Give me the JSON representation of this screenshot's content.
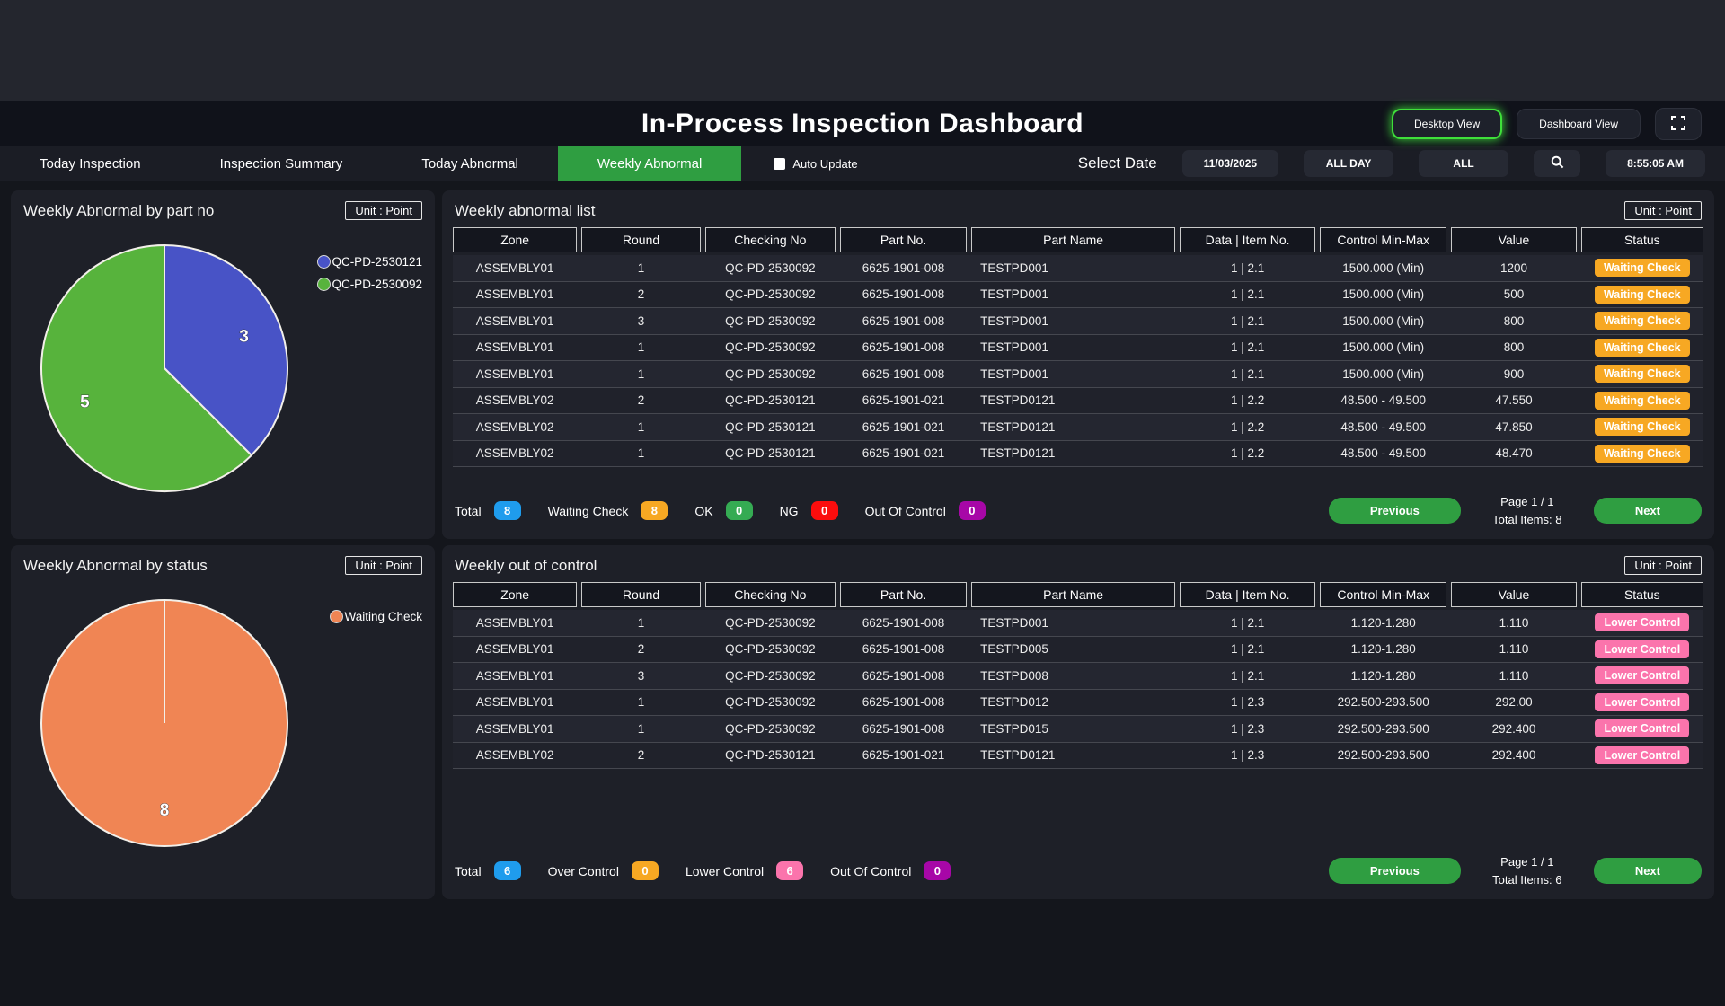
{
  "app": {
    "title": "In-Process Inspection Dashboard",
    "desktop_view": "Desktop View",
    "dashboard_view": "Dashboard View",
    "fullscreen_icon": "fullscreen-icon"
  },
  "tabs": [
    {
      "label": "Today Inspection",
      "active": false
    },
    {
      "label": "Inspection Summary",
      "active": false
    },
    {
      "label": "Today Abnormal",
      "active": false
    },
    {
      "label": "Weekly Abnormal",
      "active": true
    }
  ],
  "auto_update": {
    "label": "Auto Update",
    "checked": false
  },
  "filters": {
    "select_date_label": "Select Date",
    "date": "11/03/2025",
    "day_range": "ALL DAY",
    "line": "ALL",
    "search_icon": "search-icon",
    "time": "8:55:05 AM"
  },
  "colors": {
    "accent_green": "#2f9e41",
    "badge_blue": "#1f9ced",
    "badge_orange": "#f7a823",
    "badge_green": "#35ab53",
    "badge_red": "#fb0d0d",
    "badge_purple": "#a707a7",
    "badge_pink": "#fb74ac"
  },
  "status_colors": {
    "Waiting Check": "#f7a823",
    "Lower Control": "#fb74ac"
  },
  "chart_data": [
    {
      "type": "pie",
      "title": "Weekly Abnormal by part no",
      "unit_label": "Unit : Point",
      "legend_position": "right",
      "slices": [
        {
          "label": "QC-PD-2530121",
          "value": 3,
          "color": "#4853c6"
        },
        {
          "label": "QC-PD-2530092",
          "value": 5,
          "color": "#57b33c"
        }
      ]
    },
    {
      "type": "pie",
      "title": "Weekly Abnormal by status",
      "unit_label": "Unit : Point",
      "legend_position": "right",
      "slices": [
        {
          "label": "Waiting Check",
          "value": 8,
          "color": "#f08554"
        }
      ]
    }
  ],
  "abnormal_list": {
    "title": "Weekly abnormal list",
    "unit_label": "Unit : Point",
    "columns": [
      "Zone",
      "Round",
      "Checking No",
      "Part No.",
      "Part Name",
      "Data | Item No.",
      "Control Min-Max",
      "Value",
      "Status"
    ],
    "rows": [
      [
        "ASSEMBLY01",
        "1",
        "QC-PD-2530092",
        "6625-1901-008",
        "TESTPD001",
        "1 | 2.1",
        "1500.000 (Min)",
        "1200",
        "Waiting Check"
      ],
      [
        "ASSEMBLY01",
        "2",
        "QC-PD-2530092",
        "6625-1901-008",
        "TESTPD001",
        "1 | 2.1",
        "1500.000 (Min)",
        "500",
        "Waiting Check"
      ],
      [
        "ASSEMBLY01",
        "3",
        "QC-PD-2530092",
        "6625-1901-008",
        "TESTPD001",
        "1 | 2.1",
        "1500.000 (Min)",
        "800",
        "Waiting Check"
      ],
      [
        "ASSEMBLY01",
        "1",
        "QC-PD-2530092",
        "6625-1901-008",
        "TESTPD001",
        "1 | 2.1",
        "1500.000 (Min)",
        "800",
        "Waiting Check"
      ],
      [
        "ASSEMBLY01",
        "1",
        "QC-PD-2530092",
        "6625-1901-008",
        "TESTPD001",
        "1 | 2.1",
        "1500.000 (Min)",
        "900",
        "Waiting Check"
      ],
      [
        "ASSEMBLY02",
        "2",
        "QC-PD-2530121",
        "6625-1901-021",
        "TESTPD0121",
        "1 | 2.2",
        "48.500 - 49.500",
        "47.550",
        "Waiting Check"
      ],
      [
        "ASSEMBLY02",
        "1",
        "QC-PD-2530121",
        "6625-1901-021",
        "TESTPD0121",
        "1 | 2.2",
        "48.500 - 49.500",
        "47.850",
        "Waiting Check"
      ],
      [
        "ASSEMBLY02",
        "1",
        "QC-PD-2530121",
        "6625-1901-021",
        "TESTPD0121",
        "1 | 2.2",
        "48.500 - 49.500",
        "48.470",
        "Waiting Check"
      ]
    ],
    "summary": [
      {
        "label": "Total",
        "value": "8",
        "color": "#1f9ced"
      },
      {
        "label": "Waiting Check",
        "value": "8",
        "color": "#f7a823"
      },
      {
        "label": "OK",
        "value": "0",
        "color": "#35ab53"
      },
      {
        "label": "NG",
        "value": "0",
        "color": "#fb0d0d"
      },
      {
        "label": "Out Of Control",
        "value": "0",
        "color": "#a707a7"
      }
    ],
    "pagination": {
      "previous": "Previous",
      "next": "Next",
      "page": "Page 1 / 1",
      "total_items": "Total Items: 8"
    }
  },
  "out_of_control": {
    "title": "Weekly out of control",
    "unit_label": "Unit : Point",
    "columns": [
      "Zone",
      "Round",
      "Checking No",
      "Part No.",
      "Part Name",
      "Data | Item No.",
      "Control Min-Max",
      "Value",
      "Status"
    ],
    "rows": [
      [
        "ASSEMBLY01",
        "1",
        "QC-PD-2530092",
        "6625-1901-008",
        "TESTPD001",
        "1 | 2.1",
        "1.120-1.280",
        "1.110",
        "Lower Control"
      ],
      [
        "ASSEMBLY01",
        "2",
        "QC-PD-2530092",
        "6625-1901-008",
        "TESTPD005",
        "1 | 2.1",
        "1.120-1.280",
        "1.110",
        "Lower Control"
      ],
      [
        "ASSEMBLY01",
        "3",
        "QC-PD-2530092",
        "6625-1901-008",
        "TESTPD008",
        "1 | 2.1",
        "1.120-1.280",
        "1.110",
        "Lower Control"
      ],
      [
        "ASSEMBLY01",
        "1",
        "QC-PD-2530092",
        "6625-1901-008",
        "TESTPD012",
        "1 | 2.3",
        "292.500-293.500",
        "292.00",
        "Lower Control"
      ],
      [
        "ASSEMBLY01",
        "1",
        "QC-PD-2530092",
        "6625-1901-008",
        "TESTPD015",
        "1 | 2.3",
        "292.500-293.500",
        "292.400",
        "Lower Control"
      ],
      [
        "ASSEMBLY02",
        "2",
        "QC-PD-2530121",
        "6625-1901-021",
        "TESTPD0121",
        "1 | 2.3",
        "292.500-293.500",
        "292.400",
        "Lower Control"
      ]
    ],
    "summary": [
      {
        "label": "Total",
        "value": "6",
        "color": "#1f9ced"
      },
      {
        "label": "Over Control",
        "value": "0",
        "color": "#f7a823"
      },
      {
        "label": "Lower Control",
        "value": "6",
        "color": "#fb74ac"
      },
      {
        "label": "Out Of Control",
        "value": "0",
        "color": "#a707a7"
      }
    ],
    "pagination": {
      "previous": "Previous",
      "next": "Next",
      "page": "Page 1 / 1",
      "total_items": "Total Items: 6"
    }
  }
}
